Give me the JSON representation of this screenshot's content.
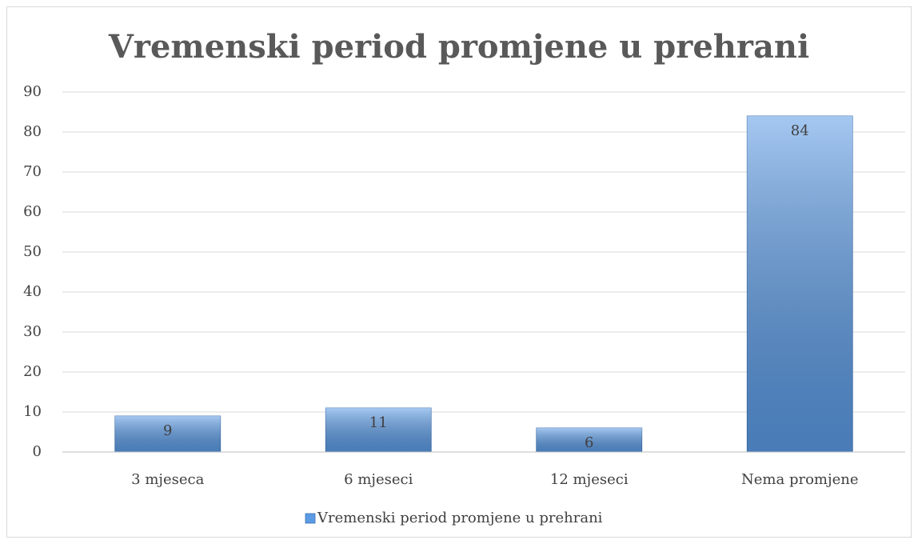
{
  "chart_data": {
    "type": "bar",
    "title": "Vremenski period promjene u prehrani",
    "categories": [
      "3 mjeseca",
      "6 mjeseci",
      "12 mjeseci",
      "Nema promjene"
    ],
    "series": [
      {
        "name": "Vremenski period promjene u prehrani",
        "color": "#5b9be6",
        "values": [
          9,
          11,
          6,
          84
        ]
      }
    ],
    "ylim": [
      0,
      90
    ],
    "yticks": [
      0,
      10,
      20,
      30,
      40,
      50,
      60,
      70,
      80,
      90
    ],
    "grid": true,
    "legend": "bottom"
  }
}
